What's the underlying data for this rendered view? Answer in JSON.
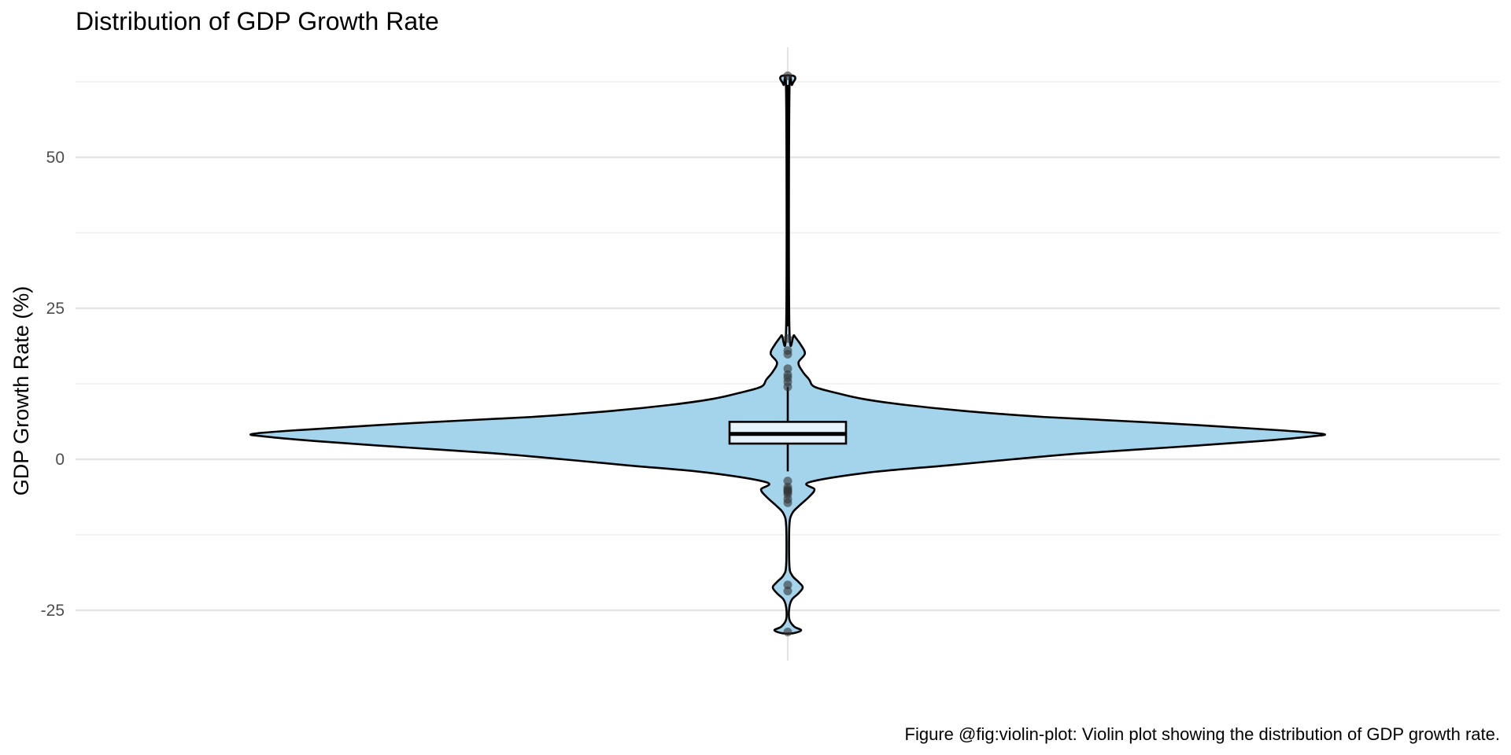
{
  "chart_data": {
    "type": "violin",
    "title": "Distribution of GDP Growth Rate",
    "xlabel": "",
    "ylabel": "GDP Growth Rate (%)",
    "caption": "Figure @fig:violin-plot: Violin plot showing the distribution of GDP growth rate.",
    "yticks": [
      -25,
      0,
      25,
      50
    ],
    "ytick_labels": [
      "-25",
      "0",
      "25",
      "50"
    ],
    "ylim": [
      -33.5,
      68
    ],
    "grid": true,
    "legend": "none",
    "fill_color": "#a3d4ec",
    "outline_color": "#000000",
    "box": {
      "q1": 2.6,
      "median": 4.2,
      "q3": 6.2,
      "whisker_low": -2.0,
      "whisker_high": 12.0
    },
    "density_profile": [
      {
        "y": -28.8,
        "w": 0.01
      },
      {
        "y": -28.3,
        "w": 0.025
      },
      {
        "y": -27.7,
        "w": 0.012
      },
      {
        "y": -26.5,
        "w": 0.003
      },
      {
        "y": -24.5,
        "w": 0.003
      },
      {
        "y": -23.2,
        "w": 0.008
      },
      {
        "y": -22.2,
        "w": 0.02
      },
      {
        "y": -21.2,
        "w": 0.028
      },
      {
        "y": -20.3,
        "w": 0.02
      },
      {
        "y": -19.2,
        "w": 0.008
      },
      {
        "y": -17.5,
        "w": 0.003
      },
      {
        "y": -11,
        "w": 0.003
      },
      {
        "y": -9,
        "w": 0.008
      },
      {
        "y": -7.8,
        "w": 0.02
      },
      {
        "y": -6.2,
        "w": 0.04
      },
      {
        "y": -5.0,
        "w": 0.05
      },
      {
        "y": -3.8,
        "w": 0.04
      },
      {
        "y": -2.2,
        "w": 0.15
      },
      {
        "y": -1.0,
        "w": 0.3
      },
      {
        "y": 0.0,
        "w": 0.42
      },
      {
        "y": 1.0,
        "w": 0.55
      },
      {
        "y": 2.0,
        "w": 0.72
      },
      {
        "y": 3.0,
        "w": 0.88
      },
      {
        "y": 3.8,
        "w": 0.98
      },
      {
        "y": 4.2,
        "w": 1.0
      },
      {
        "y": 4.8,
        "w": 0.92
      },
      {
        "y": 6.0,
        "w": 0.7
      },
      {
        "y": 7.0,
        "w": 0.48
      },
      {
        "y": 8.0,
        "w": 0.33
      },
      {
        "y": 9.0,
        "w": 0.22
      },
      {
        "y": 10.0,
        "w": 0.14
      },
      {
        "y": 11.0,
        "w": 0.09
      },
      {
        "y": 12.0,
        "w": 0.05
      },
      {
        "y": 13.2,
        "w": 0.04
      },
      {
        "y": 14.5,
        "w": 0.028
      },
      {
        "y": 16.0,
        "w": 0.02
      },
      {
        "y": 17.5,
        "w": 0.032
      },
      {
        "y": 19.0,
        "w": 0.024
      },
      {
        "y": 20.5,
        "w": 0.012
      },
      {
        "y": 22.0,
        "w": 0.003
      },
      {
        "y": 60.0,
        "w": 0.003
      },
      {
        "y": 62.0,
        "w": 0.008
      },
      {
        "y": 63.0,
        "w": 0.014
      },
      {
        "y": 63.5,
        "w": 0.01
      }
    ],
    "outliers": [
      63.5,
      20.0,
      18.0,
      17.4,
      15.0,
      14.0,
      13.5,
      12.8,
      12.0,
      -3.6,
      -4.6,
      -5.0,
      -5.2,
      -5.4,
      -5.8,
      -6.6,
      -7.2,
      -20.8,
      -21.8,
      -28.6
    ]
  }
}
